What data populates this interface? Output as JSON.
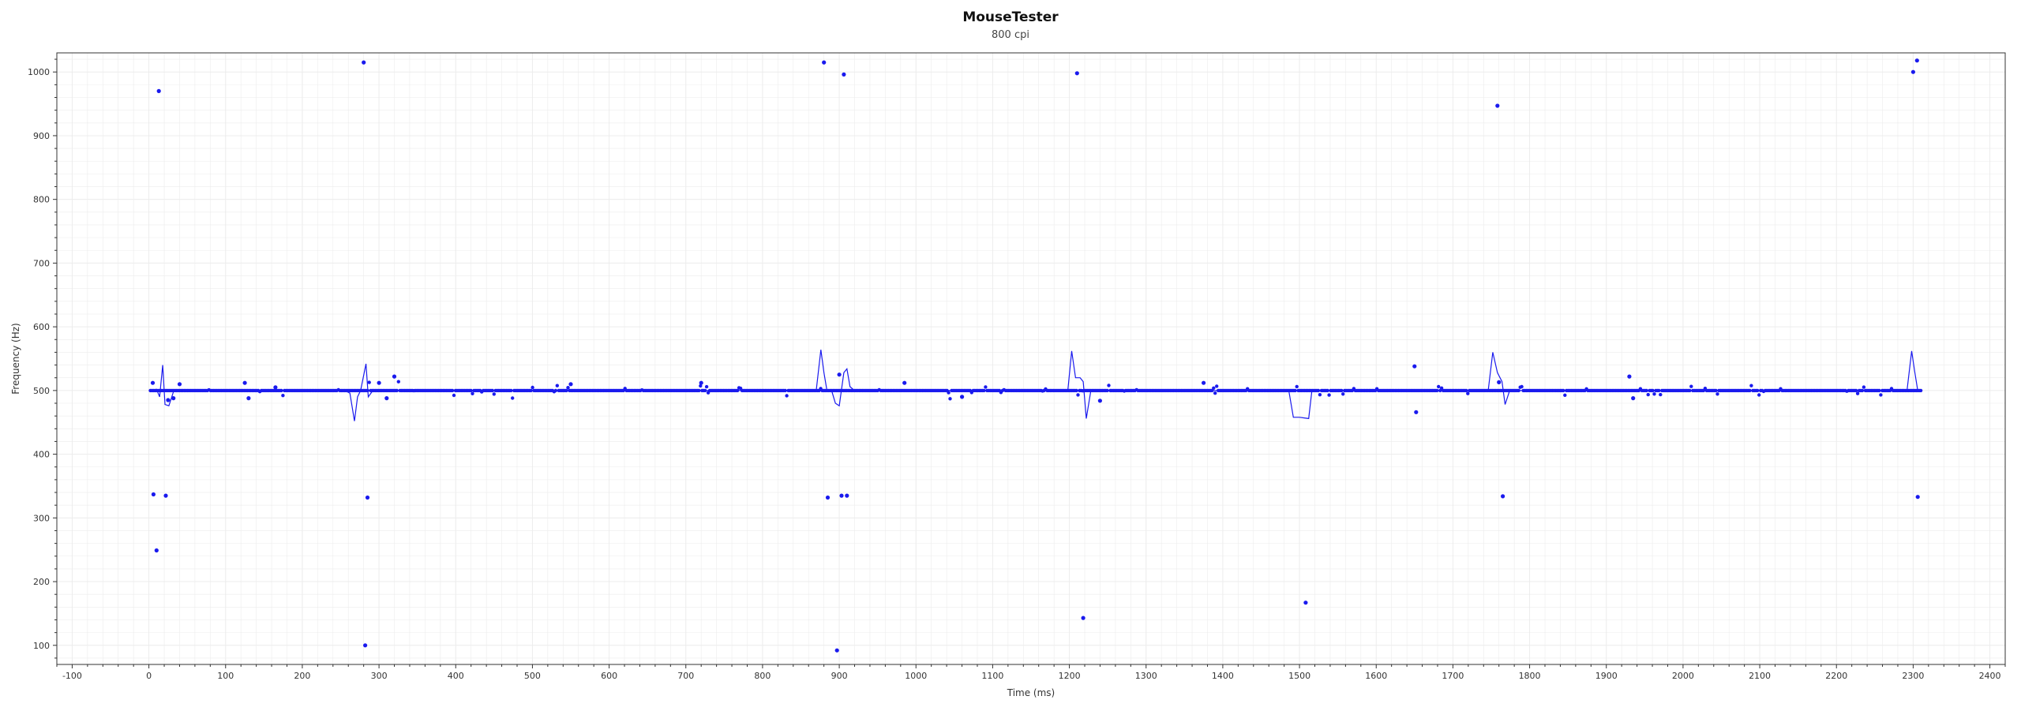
{
  "chart_data": {
    "type": "scatter",
    "title": "MouseTester",
    "subtitle": "800 cpi",
    "xlabel": "Time (ms)",
    "ylabel": "Frequency (Hz)",
    "xlim": [
      -120,
      2420
    ],
    "ylim": [
      70,
      1030
    ],
    "x_ticks": [
      -100,
      0,
      100,
      200,
      300,
      400,
      500,
      600,
      700,
      800,
      900,
      1000,
      1100,
      1200,
      1300,
      1400,
      1500,
      1600,
      1700,
      1800,
      1900,
      2000,
      2100,
      2200,
      2300,
      2400
    ],
    "y_ticks": [
      100,
      200,
      300,
      400,
      500,
      600,
      700,
      800,
      900,
      1000
    ],
    "grid": true,
    "colors": {
      "series": "#1a1aee",
      "axis": "#333333",
      "grid": "#ececec"
    },
    "series": [
      {
        "kind": "points",
        "baseline_value": 500,
        "x_range": [
          2,
          2310
        ],
        "count": 1150,
        "outliers": [
          {
            "x": 5,
            "y": 512
          },
          {
            "x": 6,
            "y": 337
          },
          {
            "x": 10,
            "y": 249
          },
          {
            "x": 13,
            "y": 970
          },
          {
            "x": 22,
            "y": 335
          },
          {
            "x": 25,
            "y": 485
          },
          {
            "x": 32,
            "y": 488
          },
          {
            "x": 40,
            "y": 510
          },
          {
            "x": 125,
            "y": 512
          },
          {
            "x": 130,
            "y": 488
          },
          {
            "x": 165,
            "y": 505
          },
          {
            "x": 280,
            "y": 1015
          },
          {
            "x": 282,
            "y": 100
          },
          {
            "x": 285,
            "y": 332
          },
          {
            "x": 300,
            "y": 512
          },
          {
            "x": 310,
            "y": 488
          },
          {
            "x": 320,
            "y": 522
          },
          {
            "x": 550,
            "y": 510
          },
          {
            "x": 720,
            "y": 512
          },
          {
            "x": 880,
            "y": 1015
          },
          {
            "x": 885,
            "y": 332
          },
          {
            "x": 897,
            "y": 92
          },
          {
            "x": 900,
            "y": 525
          },
          {
            "x": 903,
            "y": 335
          },
          {
            "x": 906,
            "y": 996
          },
          {
            "x": 910,
            "y": 335
          },
          {
            "x": 985,
            "y": 512
          },
          {
            "x": 1060,
            "y": 490
          },
          {
            "x": 1210,
            "y": 998
          },
          {
            "x": 1218,
            "y": 143
          },
          {
            "x": 1240,
            "y": 484
          },
          {
            "x": 1375,
            "y": 512
          },
          {
            "x": 1508,
            "y": 167
          },
          {
            "x": 1650,
            "y": 538
          },
          {
            "x": 1652,
            "y": 466
          },
          {
            "x": 1758,
            "y": 947
          },
          {
            "x": 1760,
            "y": 513
          },
          {
            "x": 1765,
            "y": 334
          },
          {
            "x": 1930,
            "y": 522
          },
          {
            "x": 1935,
            "y": 488
          },
          {
            "x": 2300,
            "y": 1000
          },
          {
            "x": 2305,
            "y": 1018
          },
          {
            "x": 2306,
            "y": 333
          }
        ]
      },
      {
        "kind": "line",
        "description_free": true,
        "points": [
          [
            2,
            500
          ],
          [
            10,
            502
          ],
          [
            14,
            490
          ],
          [
            18,
            540
          ],
          [
            21,
            478
          ],
          [
            26,
            476
          ],
          [
            32,
            498
          ],
          [
            40,
            500
          ],
          [
            255,
            500
          ],
          [
            262,
            496
          ],
          [
            268,
            452
          ],
          [
            272,
            490
          ],
          [
            276,
            500
          ],
          [
            283,
            542
          ],
          [
            286,
            490
          ],
          [
            292,
            500
          ],
          [
            870,
            500
          ],
          [
            876,
            564
          ],
          [
            880,
            528
          ],
          [
            884,
            500
          ],
          [
            890,
            500
          ],
          [
            895,
            480
          ],
          [
            900,
            476
          ],
          [
            906,
            528
          ],
          [
            910,
            534
          ],
          [
            914,
            506
          ],
          [
            920,
            500
          ],
          [
            1198,
            500
          ],
          [
            1203,
            562
          ],
          [
            1208,
            520
          ],
          [
            1214,
            520
          ],
          [
            1218,
            514
          ],
          [
            1222,
            456
          ],
          [
            1228,
            500
          ],
          [
            1486,
            500
          ],
          [
            1492,
            458
          ],
          [
            1500,
            458
          ],
          [
            1512,
            456
          ],
          [
            1516,
            498
          ],
          [
            1522,
            500
          ],
          [
            1746,
            500
          ],
          [
            1752,
            560
          ],
          [
            1758,
            528
          ],
          [
            1764,
            514
          ],
          [
            1768,
            478
          ],
          [
            1774,
            500
          ],
          [
            2292,
            500
          ],
          [
            2298,
            562
          ],
          [
            2302,
            530
          ],
          [
            2306,
            500
          ]
        ]
      }
    ]
  }
}
